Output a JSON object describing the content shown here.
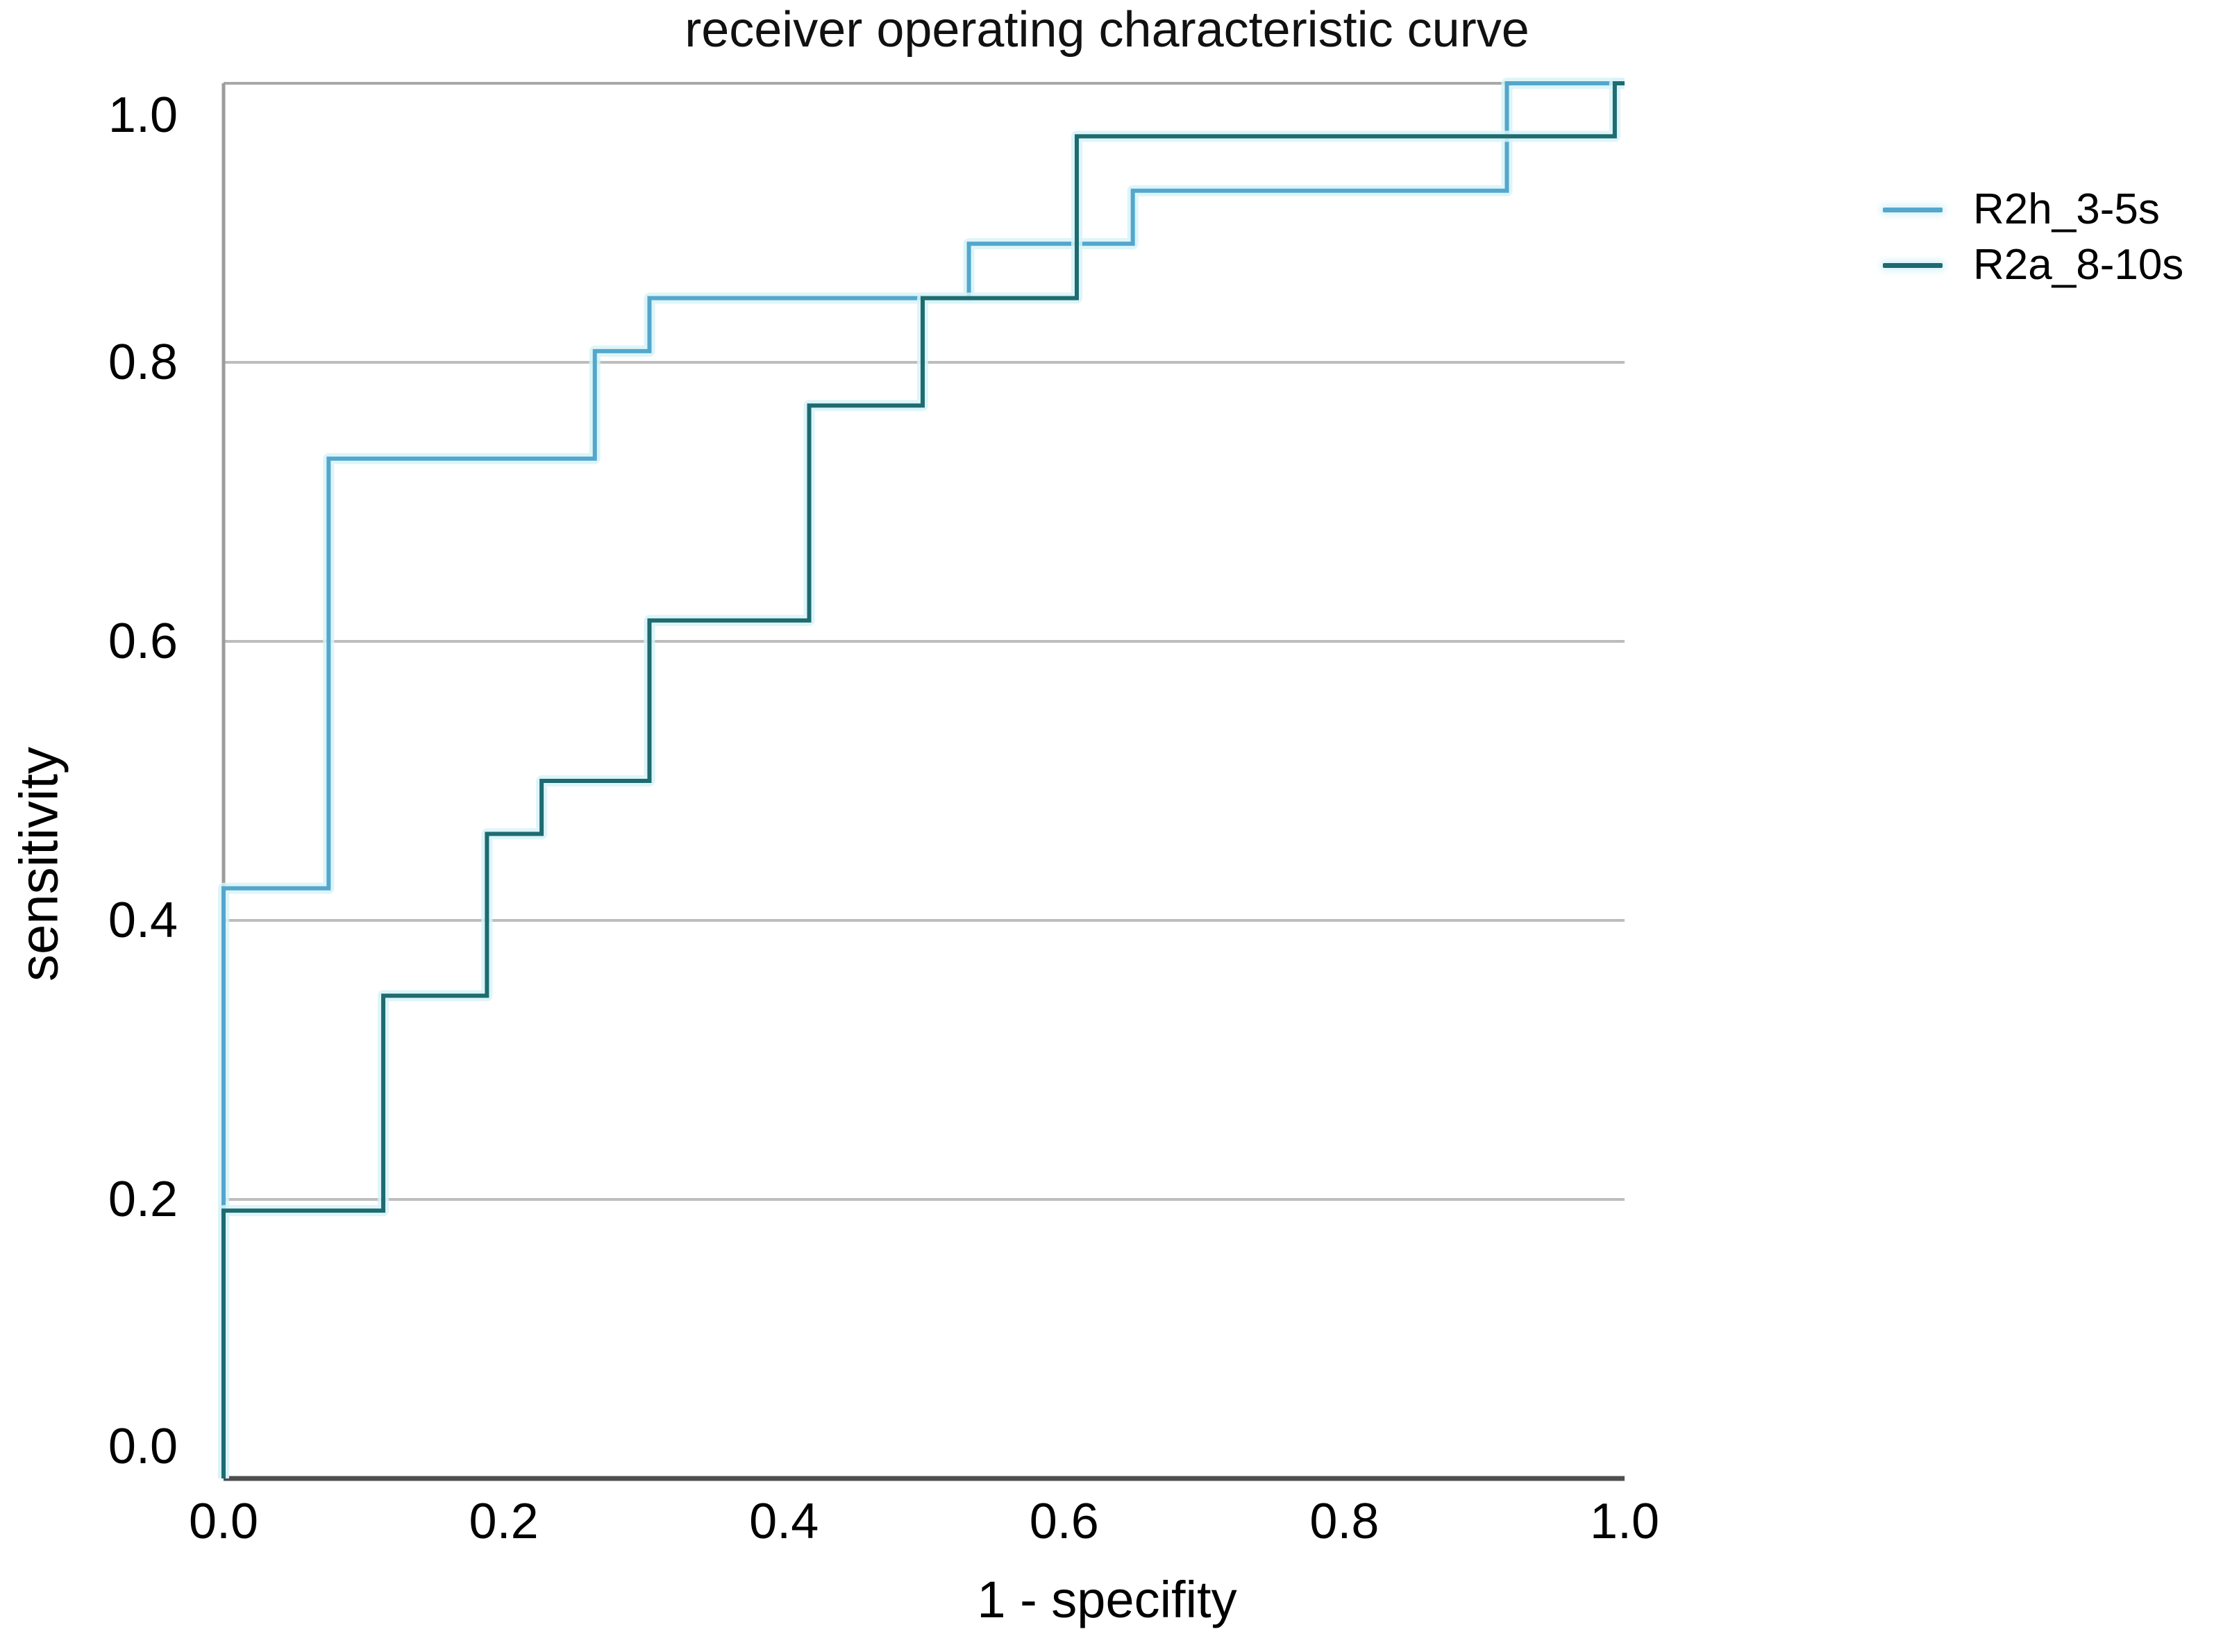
{
  "chart_data": {
    "type": "line",
    "variant": "roc-step-curves",
    "title": "receiver operating characteristic curve",
    "xlabel": "1 - specifity",
    "ylabel": "sensitivity",
    "xlim": [
      0.0,
      1.0
    ],
    "ylim": [
      0.0,
      1.0
    ],
    "xticks": [
      0.0,
      0.2,
      0.4,
      0.6,
      0.8,
      1.0
    ],
    "yticks": [
      0.0,
      0.2,
      0.4,
      0.6,
      0.8,
      1.0
    ],
    "xtick_labels": [
      "0.0",
      "0.2",
      "0.4",
      "0.6",
      "0.8",
      "1.0"
    ],
    "ytick_labels": [
      "0.0",
      "0.2",
      "0.4",
      "0.6",
      "0.8",
      "1.0"
    ],
    "grid": "horizontal-only",
    "gridline_values": [
      0.2,
      0.4,
      0.6,
      0.8
    ],
    "legend_position": "outside-upper-right",
    "colors": {
      "background": "#ffffff",
      "grid": "#bdbdbd",
      "frame_top": "#a8a8a8",
      "spine_left": "#9c9c9c",
      "axis_bottom": "#4e4e4e",
      "halo": "#d7f3f8",
      "text": "#000000"
    },
    "series": [
      {
        "name": "R2h_3-5s",
        "color": "#54a7cc",
        "halo": "#d7f3f8",
        "points": [
          [
            0.0,
            0.0
          ],
          [
            0.0,
            0.423
          ],
          [
            0.075,
            0.423
          ],
          [
            0.075,
            0.731
          ],
          [
            0.265,
            0.731
          ],
          [
            0.265,
            0.808
          ],
          [
            0.304,
            0.808
          ],
          [
            0.304,
            0.846
          ],
          [
            0.532,
            0.846
          ],
          [
            0.532,
            0.885
          ],
          [
            0.649,
            0.885
          ],
          [
            0.649,
            0.923
          ],
          [
            0.916,
            0.923
          ],
          [
            0.916,
            1.0
          ],
          [
            1.0,
            1.0
          ]
        ]
      },
      {
        "name": "R2a_8-10s",
        "color": "#1e6b70",
        "halo": "#d7f3f8",
        "points": [
          [
            0.0,
            0.0
          ],
          [
            0.0,
            0.192
          ],
          [
            0.114,
            0.192
          ],
          [
            0.114,
            0.346
          ],
          [
            0.188,
            0.346
          ],
          [
            0.188,
            0.462
          ],
          [
            0.227,
            0.462
          ],
          [
            0.227,
            0.5
          ],
          [
            0.304,
            0.5
          ],
          [
            0.304,
            0.615
          ],
          [
            0.418,
            0.615
          ],
          [
            0.418,
            0.769
          ],
          [
            0.499,
            0.769
          ],
          [
            0.499,
            0.846
          ],
          [
            0.609,
            0.846
          ],
          [
            0.609,
            0.962
          ],
          [
            0.993,
            0.962
          ],
          [
            0.993,
            1.0
          ],
          [
            1.0,
            1.0
          ]
        ]
      }
    ]
  }
}
